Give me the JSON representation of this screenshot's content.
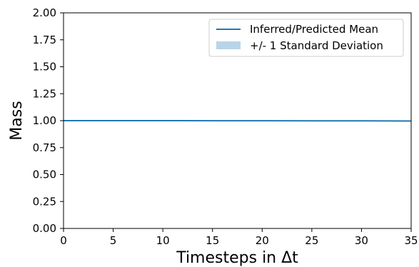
{
  "chart_data": {
    "type": "line",
    "xlabel": "Timesteps in Δt",
    "ylabel": "Mass",
    "xlim": [
      0,
      35
    ],
    "ylim": [
      0,
      2
    ],
    "xticks": [
      0,
      5,
      10,
      15,
      20,
      25,
      30,
      35
    ],
    "yticks": [
      "0.00",
      "0.25",
      "0.50",
      "0.75",
      "1.00",
      "1.25",
      "1.50",
      "1.75",
      "2.00"
    ],
    "grid": false,
    "legend_position": "top-right",
    "series": [
      {
        "name": "Inferred/Predicted Mean",
        "color": "#1f77b4",
        "x": [
          0,
          5,
          10,
          15,
          20,
          25,
          30,
          35
        ],
        "y": [
          1.0,
          1.0,
          1.0,
          0.999,
          0.999,
          0.998,
          0.998,
          0.997
        ]
      }
    ],
    "band": {
      "name": "+/- 1 Standard Deviation",
      "color": "#b8d4e8",
      "std": [
        0.002,
        0.002,
        0.002,
        0.002,
        0.002,
        0.002,
        0.002,
        0.002
      ]
    }
  }
}
